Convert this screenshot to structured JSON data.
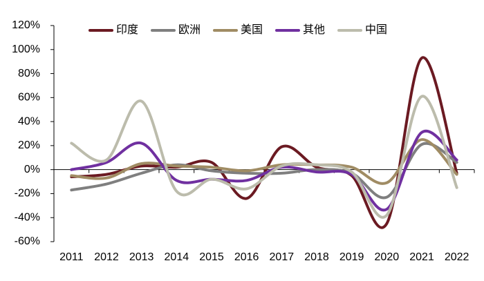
{
  "chart_data": {
    "type": "line",
    "smooth": true,
    "legend": "top",
    "categories": [
      "2011",
      "2012",
      "2013",
      "2014",
      "2015",
      "2016",
      "2017",
      "2018",
      "2019",
      "2020",
      "2021",
      "2022"
    ],
    "ylim": [
      -60,
      120
    ],
    "yticks": [
      {
        "value": -60,
        "label": "-60%"
      },
      {
        "value": -40,
        "label": "-40%"
      },
      {
        "value": -20,
        "label": "-20%"
      },
      {
        "value": 0,
        "label": "0%"
      },
      {
        "value": 20,
        "label": "20%"
      },
      {
        "value": 40,
        "label": "40%"
      },
      {
        "value": 60,
        "label": "60%"
      },
      {
        "value": 80,
        "label": "80%"
      },
      {
        "value": 100,
        "label": "100%"
      },
      {
        "value": 120,
        "label": "120%"
      }
    ],
    "series": [
      {
        "name": "印度",
        "color": "#6b1a22",
        "values": [
          -6,
          -4,
          3,
          2,
          6,
          -24,
          19,
          2,
          -5,
          -45,
          93,
          -3
        ]
      },
      {
        "name": "欧洲",
        "color": "#7f7f7f",
        "values": [
          -17,
          -12,
          -3,
          4,
          -1,
          -3,
          -3,
          0,
          -3,
          -23,
          21,
          6
        ]
      },
      {
        "name": "美国",
        "color": "#a08c64",
        "values": [
          -5,
          -7,
          5,
          3,
          2,
          -1,
          4,
          4,
          2,
          -11,
          25,
          -4
        ]
      },
      {
        "name": "其他",
        "color": "#7030a0",
        "values": [
          0,
          6,
          22,
          -9,
          -8,
          -9,
          2,
          -2,
          -4,
          -33,
          31,
          8
        ]
      },
      {
        "name": "中国",
        "color": "#bcbcac",
        "values": [
          22,
          8,
          57,
          -18,
          -8,
          -16,
          3,
          4,
          -2,
          -38,
          61,
          -15
        ]
      }
    ]
  }
}
